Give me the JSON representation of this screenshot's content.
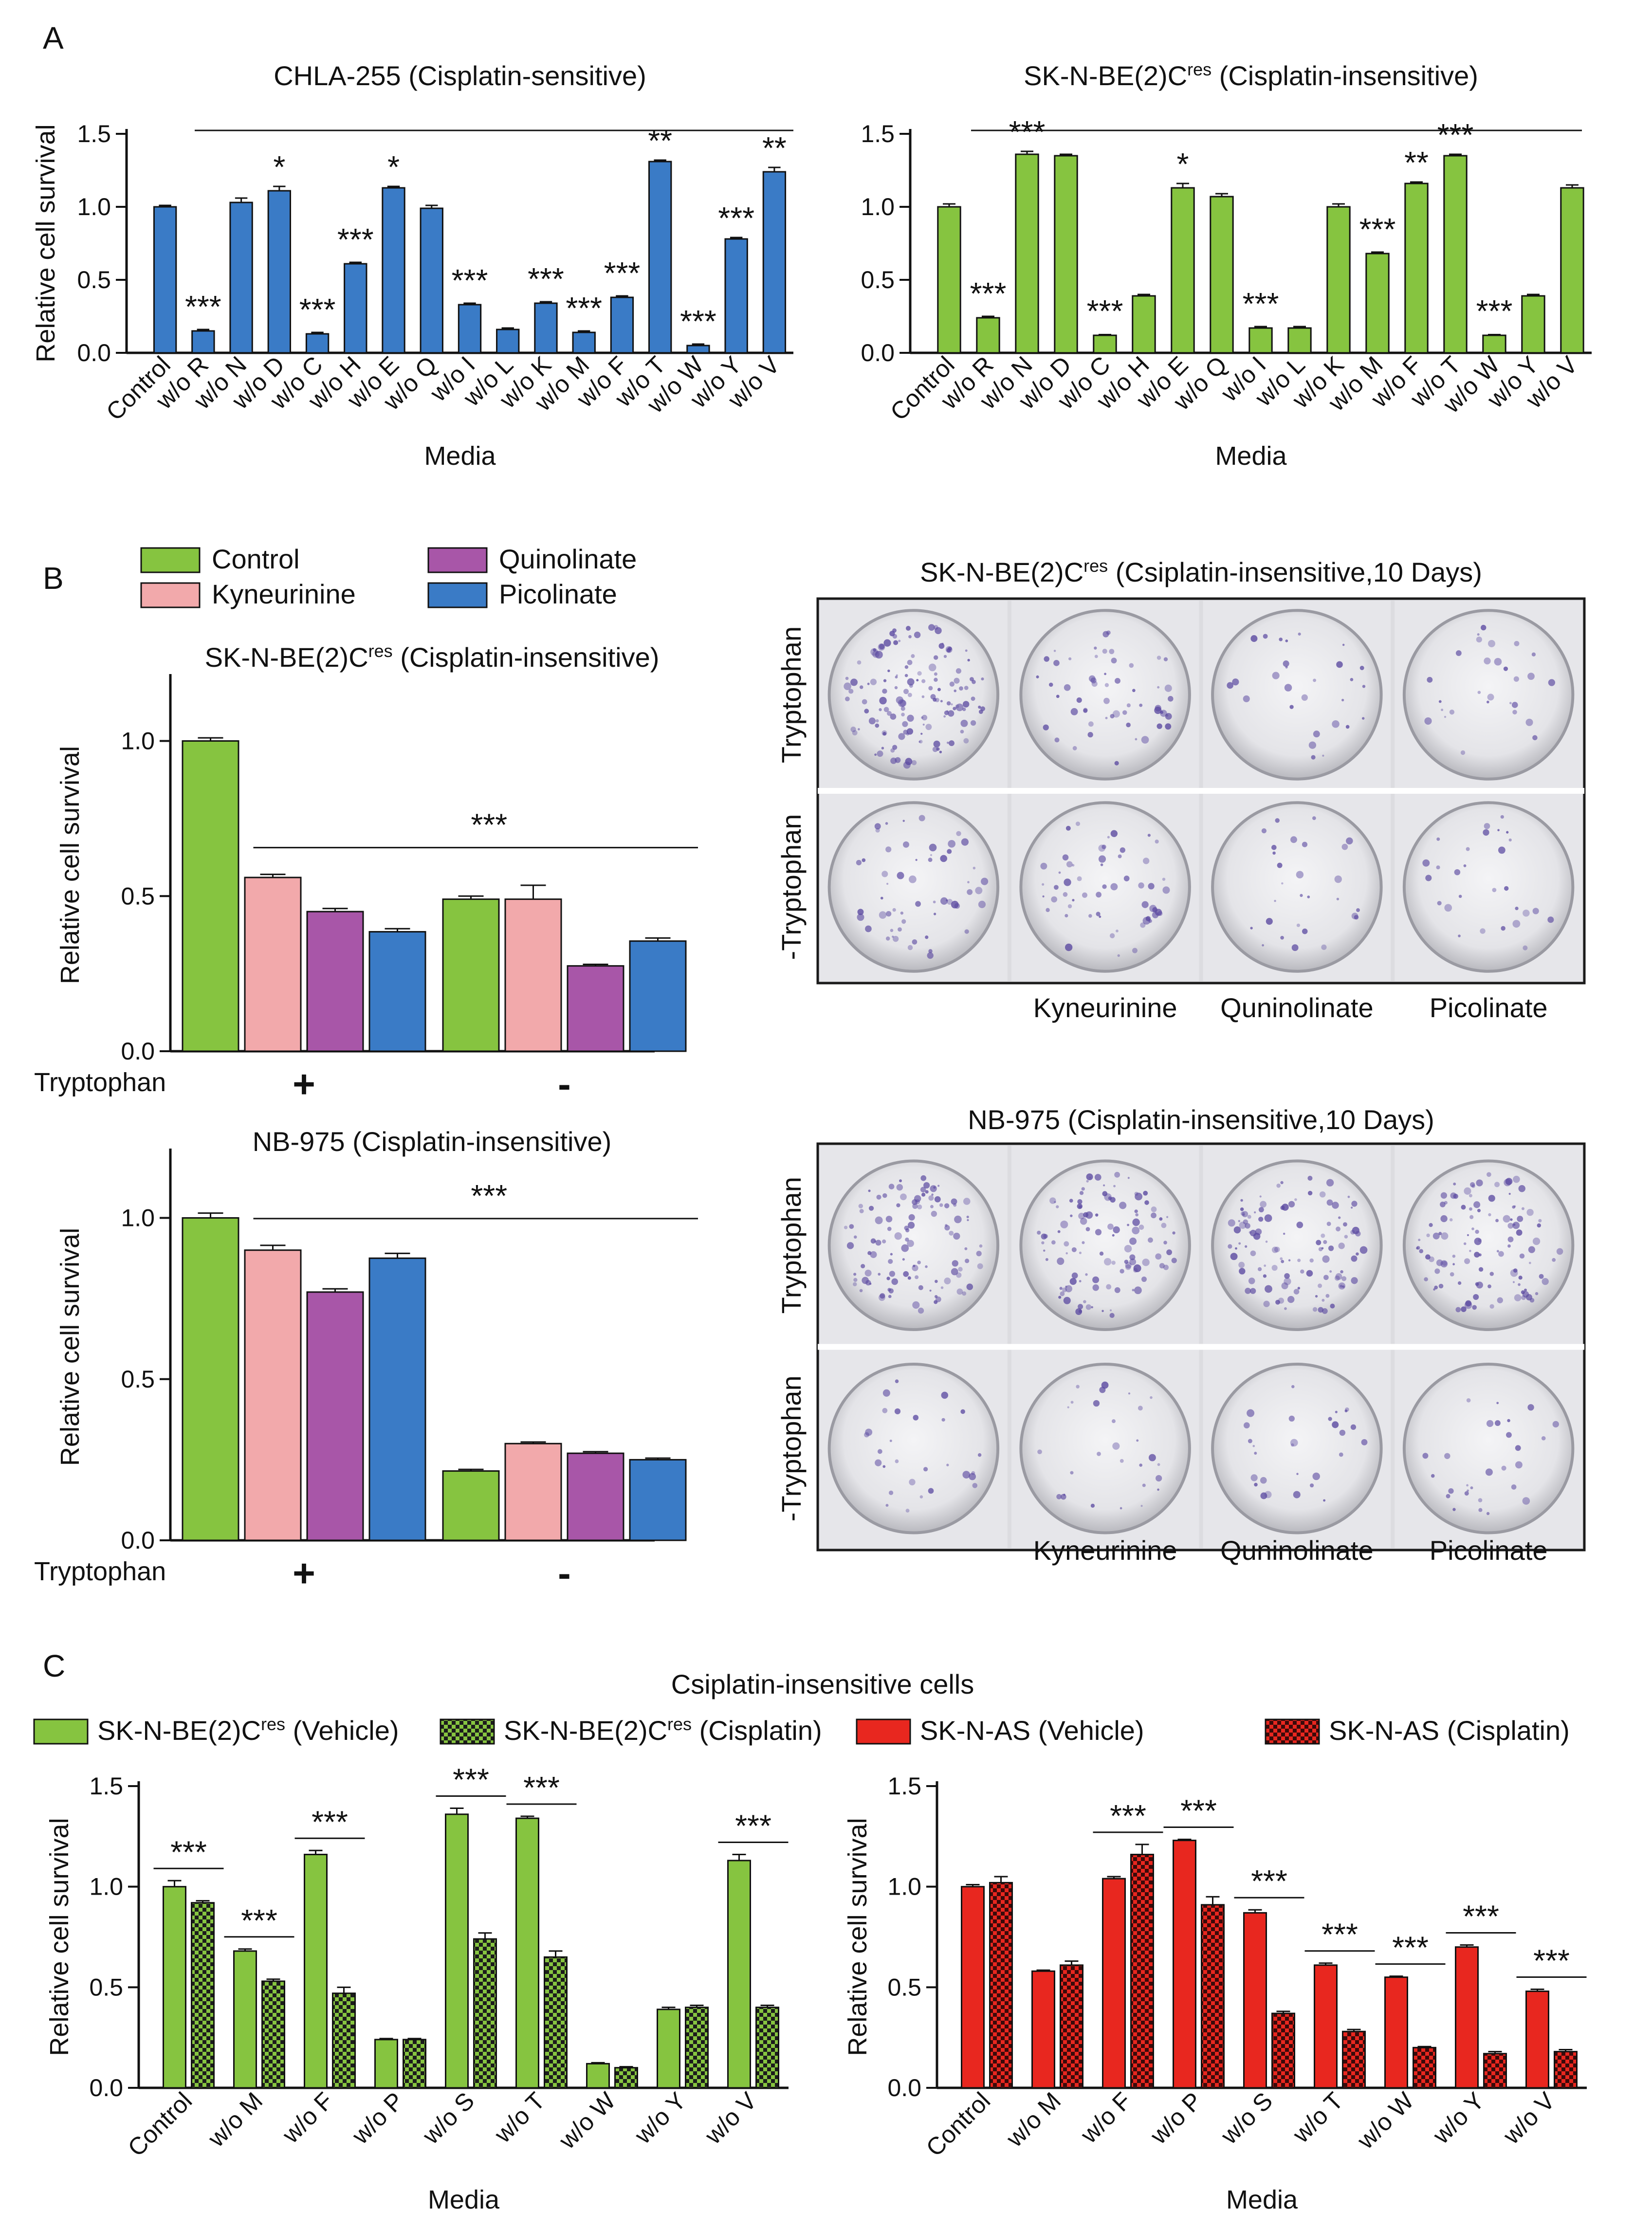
{
  "panel_letters": {
    "A": "A",
    "B": "B",
    "C": "C"
  },
  "colors": {
    "blue": "#3a7bc6",
    "green": "#86c440",
    "pink": "#f2a9ab",
    "purple": "#a856a8",
    "red": "#e8271f",
    "plate_bg": "#e9e9eb",
    "plate_frame": "#1a1a1a",
    "stain": "#5a48a0"
  },
  "panelB": {
    "legend": [
      {
        "label": "Control",
        "color": "#86c440"
      },
      {
        "label": "Quinolinate",
        "color": "#a856a8"
      },
      {
        "label": "Kyneurinine",
        "color": "#f2a9ab"
      },
      {
        "label": "Picolinate",
        "color": "#3a7bc6"
      }
    ],
    "photos": [
      {
        "title": "SK-N-BE(2)C",
        "title_sup": "res",
        "title_tail": " (Csiplatin-insensitive,10 Days)",
        "row_labels": [
          "Tryptophan",
          "-Tryptophan"
        ],
        "col_labels": [
          "Kyneurinine",
          "Quninolinate",
          "Picolinate"
        ],
        "density": [
          [
            5,
            2,
            1,
            1
          ],
          [
            2,
            2,
            1,
            1
          ]
        ]
      },
      {
        "title": "NB-975",
        "title_sup": "",
        "title_tail": " (Cisplatin-insensitive,10 Days)",
        "row_labels": [
          "Tryptophan",
          "-Tryptophan"
        ],
        "col_labels": [
          "Kyneurinine",
          "Quninolinate",
          "Picolinate"
        ],
        "density": [
          [
            4,
            4,
            4,
            4
          ],
          [
            1,
            1,
            1,
            1
          ]
        ]
      }
    ]
  },
  "panelC": {
    "heading": "Csiplatin-insensitive cells",
    "legend": [
      {
        "label": "SK-N-BE(2)C",
        "sup": "res",
        "tail": " (Vehicle)",
        "color": "#86c440",
        "pattern": false
      },
      {
        "label": "SK-N-BE(2)C",
        "sup": "res",
        "tail": " (Cisplatin)",
        "color": "#86c440",
        "pattern": true
      },
      {
        "label": "SK-N-AS (Vehicle)",
        "sup": "",
        "tail": "",
        "color": "#e8271f",
        "pattern": false
      },
      {
        "label": "SK-N-AS (Cisplatin)",
        "sup": "",
        "tail": "",
        "color": "#e8271f",
        "pattern": true
      }
    ]
  },
  "chart_data": [
    {
      "id": "A1",
      "type": "bar",
      "title": "CHLA-255 (Cisplatin-sensitive)",
      "title_sup": "",
      "title_tail": "",
      "xlabel": "Media",
      "ylabel": "Relative cell survival",
      "ylim": [
        0,
        1.5
      ],
      "yticks": [
        "0.0",
        "0.5",
        "1.0",
        "1.5"
      ],
      "ytick_values": [
        0,
        0.5,
        1.0,
        1.5
      ],
      "categories": [
        "Control",
        "w/o R",
        "w/o N",
        "w/o D",
        "w/o C",
        "w/o H",
        "w/o E",
        "w/o Q",
        "w/o I",
        "w/o L",
        "w/o K",
        "w/o M",
        "w/o F",
        "w/o T",
        "w/o W",
        "w/o Y",
        "w/o V"
      ],
      "values": [
        1.0,
        0.15,
        1.03,
        1.11,
        0.13,
        0.61,
        1.13,
        0.99,
        0.33,
        0.16,
        0.34,
        0.14,
        0.38,
        1.31,
        0.05,
        0.78,
        1.24
      ],
      "errors": [
        0.01,
        0.01,
        0.03,
        0.03,
        0.01,
        0.01,
        0.01,
        0.02,
        0.01,
        0.01,
        0.01,
        0.01,
        0.01,
        0.01,
        0.01,
        0.01,
        0.03
      ],
      "significance": [
        "",
        "***",
        "",
        "*",
        "***",
        "***",
        "*",
        "",
        "***",
        "",
        "***",
        "***",
        "***",
        "**",
        "***",
        "***",
        "**"
      ],
      "color": "#3a7bc6"
    },
    {
      "id": "A2",
      "type": "bar",
      "title": "SK-N-BE(2)C",
      "title_sup": "res",
      "title_tail": " (Cisplatin-insensitive)",
      "xlabel": "Media",
      "ylabel": "",
      "ylim": [
        0,
        1.5
      ],
      "yticks": [
        "0.0",
        "0.5",
        "1.0",
        "1.5"
      ],
      "ytick_values": [
        0,
        0.5,
        1.0,
        1.5
      ],
      "categories": [
        "Control",
        "w/o R",
        "w/o N",
        "w/o D",
        "w/o C",
        "w/o H",
        "w/o E",
        "w/o Q",
        "w/o I",
        "w/o L",
        "w/o K",
        "w/o M",
        "w/o F",
        "w/o T",
        "w/o W",
        "w/o Y",
        "w/o V"
      ],
      "values": [
        1.0,
        0.24,
        1.36,
        1.35,
        0.12,
        0.39,
        1.13,
        1.07,
        0.17,
        0.17,
        1.0,
        0.68,
        1.16,
        1.35,
        0.12,
        0.39,
        1.13
      ],
      "errors": [
        0.02,
        0.01,
        0.02,
        0.01,
        0.005,
        0.01,
        0.03,
        0.02,
        0.01,
        0.01,
        0.02,
        0.01,
        0.01,
        0.01,
        0.005,
        0.01,
        0.02
      ],
      "significance": [
        "",
        "***",
        "***",
        "",
        "***",
        "",
        "*",
        "",
        "***",
        "",
        "",
        "***",
        "**",
        "***",
        "***",
        "",
        ""
      ],
      "color": "#86c440"
    },
    {
      "id": "B1",
      "type": "bar",
      "title": "SK-N-BE(2)C",
      "title_sup": "res",
      "title_tail": " (Cisplatin-insensitive)",
      "xlabel": "",
      "ylabel": "Relative cell survival",
      "ylim": [
        0,
        1.2
      ],
      "yticks": [
        "0.0",
        "0.5",
        "1.0"
      ],
      "ytick_values": [
        0,
        0.5,
        1.0
      ],
      "group_axis_label": "Tryptophan",
      "groups": [
        "+",
        "-"
      ],
      "series": [
        {
          "name": "Control",
          "values": [
            1.0,
            0.49
          ],
          "errors": [
            0.01,
            0.01
          ],
          "color": "#86c440"
        },
        {
          "name": "Kyneurinine",
          "values": [
            0.56,
            0.49
          ],
          "errors": [
            0.01,
            0.045
          ],
          "color": "#f2a9ab"
        },
        {
          "name": "Quinolinate",
          "values": [
            0.45,
            0.275
          ],
          "errors": [
            0.01,
            0.005
          ],
          "color": "#a856a8"
        },
        {
          "name": "Picolinate",
          "values": [
            0.385,
            0.355
          ],
          "errors": [
            0.01,
            0.01
          ],
          "color": "#3a7bc6"
        }
      ],
      "significance": "***"
    },
    {
      "id": "B2",
      "type": "bar",
      "title": "NB-975 (Cisplatin-insensitive)",
      "title_sup": "",
      "title_tail": "",
      "xlabel": "",
      "ylabel": "Relative cell survival",
      "ylim": [
        0,
        1.2
      ],
      "yticks": [
        "0.0",
        "0.5",
        "1.0"
      ],
      "ytick_values": [
        0,
        0.5,
        1.0
      ],
      "group_axis_label": "Tryptophan",
      "groups": [
        "+",
        "-"
      ],
      "series": [
        {
          "name": "Control",
          "values": [
            1.0,
            0.215
          ],
          "errors": [
            0.015,
            0.005
          ],
          "color": "#86c440"
        },
        {
          "name": "Kyneurinine",
          "values": [
            0.9,
            0.3
          ],
          "errors": [
            0.015,
            0.005
          ],
          "color": "#f2a9ab"
        },
        {
          "name": "Quinolinate",
          "values": [
            0.77,
            0.27
          ],
          "errors": [
            0.01,
            0.005
          ],
          "color": "#a856a8"
        },
        {
          "name": "Picolinate",
          "values": [
            0.875,
            0.25
          ],
          "errors": [
            0.015,
            0.005
          ],
          "color": "#3a7bc6"
        }
      ],
      "significance": "***"
    },
    {
      "id": "C1",
      "type": "bar",
      "title": "",
      "xlabel": "Media",
      "ylabel": "Relative cell survival",
      "ylim": [
        0,
        1.5
      ],
      "yticks": [
        "0.0",
        "0.5",
        "1.0",
        "1.5"
      ],
      "ytick_values": [
        0,
        0.5,
        1.0,
        1.5
      ],
      "categories": [
        "Control",
        "w/o M",
        "w/o F",
        "w/o P",
        "w/o S",
        "w/o T",
        "w/o W",
        "w/o Y",
        "w/o V"
      ],
      "series": [
        {
          "name": "SK-N-BE(2)Cres (Vehicle)",
          "values": [
            1.0,
            0.68,
            1.16,
            0.24,
            1.36,
            1.34,
            0.12,
            0.39,
            1.13
          ],
          "errors": [
            0.03,
            0.01,
            0.02,
            0.005,
            0.03,
            0.01,
            0.005,
            0.01,
            0.03
          ],
          "color": "#86c440",
          "pattern": false
        },
        {
          "name": "SK-N-BE(2)Cres (Cisplatin)",
          "values": [
            0.92,
            0.53,
            0.47,
            0.24,
            0.74,
            0.65,
            0.1,
            0.4,
            0.4
          ],
          "errors": [
            0.01,
            0.01,
            0.03,
            0.005,
            0.03,
            0.03,
            0.005,
            0.01,
            0.01
          ],
          "color": "#86c440",
          "pattern": true
        }
      ],
      "significance": [
        "***",
        "***",
        "***",
        "",
        "***",
        "***",
        "",
        "",
        "***"
      ]
    },
    {
      "id": "C2",
      "type": "bar",
      "title": "",
      "xlabel": "Media",
      "ylabel": "Relative cell survival",
      "ylim": [
        0,
        1.5
      ],
      "yticks": [
        "0.0",
        "0.5",
        "1.0",
        "1.5"
      ],
      "ytick_values": [
        0,
        0.5,
        1.0,
        1.5
      ],
      "categories": [
        "Control",
        "w/o M",
        "w/o F",
        "w/o P",
        "w/o S",
        "w/o T",
        "w/o W",
        "w/o Y",
        "w/o V"
      ],
      "series": [
        {
          "name": "SK-N-AS (Vehicle)",
          "values": [
            1.0,
            0.58,
            1.04,
            1.23,
            0.87,
            0.61,
            0.55,
            0.7,
            0.48
          ],
          "errors": [
            0.01,
            0.005,
            0.01,
            0.005,
            0.015,
            0.01,
            0.005,
            0.01,
            0.01
          ],
          "color": "#e8271f",
          "pattern": false
        },
        {
          "name": "SK-N-AS (Cisplatin)",
          "values": [
            1.02,
            0.61,
            1.16,
            0.91,
            0.37,
            0.28,
            0.2,
            0.17,
            0.18
          ],
          "errors": [
            0.03,
            0.02,
            0.05,
            0.04,
            0.01,
            0.01,
            0.005,
            0.01,
            0.01
          ],
          "color": "#e8271f",
          "pattern": true
        }
      ],
      "significance": [
        "",
        "",
        "***",
        "***",
        "***",
        "***",
        "***",
        "***",
        "***"
      ]
    }
  ]
}
